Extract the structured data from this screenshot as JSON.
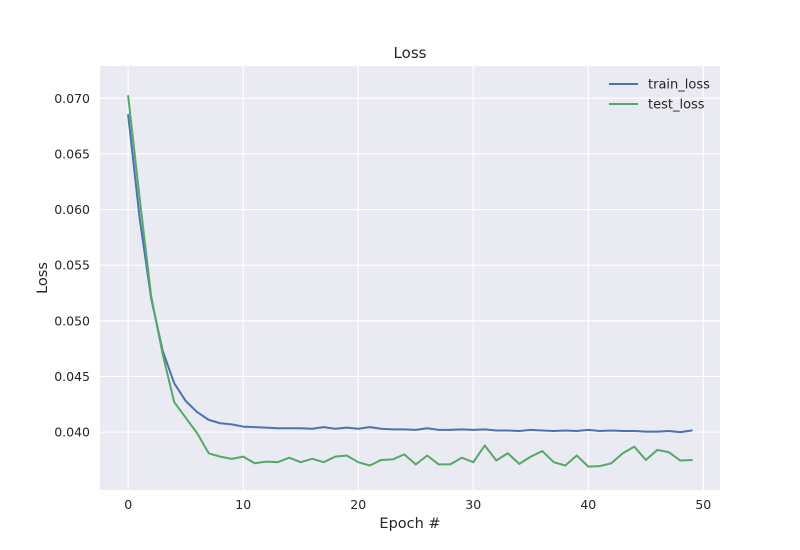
{
  "chart_data": {
    "type": "line",
    "title": "Loss",
    "xlabel": "Epoch #",
    "ylabel": "Loss",
    "xlim": [
      -2.45,
      51.45
    ],
    "ylim": [
      0.0348,
      0.0729
    ],
    "xticks": [
      0,
      10,
      20,
      30,
      40,
      50
    ],
    "yticks": [
      0.04,
      0.045,
      0.05,
      0.055,
      0.06,
      0.065,
      0.07
    ],
    "xtick_labels": [
      "0",
      "10",
      "20",
      "30",
      "40",
      "50"
    ],
    "ytick_labels": [
      "0.040",
      "0.045",
      "0.050",
      "0.055",
      "0.060",
      "0.065",
      "0.070"
    ],
    "grid": true,
    "legend_position": "top-right",
    "x": [
      0,
      1,
      2,
      3,
      4,
      5,
      6,
      7,
      8,
      9,
      10,
      11,
      12,
      13,
      14,
      15,
      16,
      17,
      18,
      19,
      20,
      21,
      22,
      23,
      24,
      25,
      26,
      27,
      28,
      29,
      30,
      31,
      32,
      33,
      34,
      35,
      36,
      37,
      38,
      39,
      40,
      41,
      42,
      43,
      44,
      45,
      46,
      47,
      48,
      49
    ],
    "series": [
      {
        "name": "train_loss",
        "color": "#4c72b0",
        "values": [
          0.0685,
          0.0592,
          0.052,
          0.0473,
          0.0444,
          0.0428,
          0.0418,
          0.0411,
          0.0408,
          0.0407,
          0.0405,
          0.04045,
          0.0404,
          0.04035,
          0.04035,
          0.04035,
          0.0403,
          0.04045,
          0.0403,
          0.0404,
          0.0403,
          0.04045,
          0.0403,
          0.04025,
          0.04025,
          0.0402,
          0.04035,
          0.0402,
          0.0402,
          0.04025,
          0.0402,
          0.04025,
          0.04015,
          0.04015,
          0.0401,
          0.0402,
          0.04015,
          0.0401,
          0.04015,
          0.0401,
          0.0402,
          0.0401,
          0.04015,
          0.0401,
          0.0401,
          0.04005,
          0.04005,
          0.0401,
          0.04,
          0.04015
        ]
      },
      {
        "name": "test_loss",
        "color": "#55a868",
        "values": [
          0.0702,
          0.061,
          0.0522,
          0.047,
          0.0427,
          0.0413,
          0.0399,
          0.0381,
          0.0378,
          0.0376,
          0.0378,
          0.0372,
          0.03735,
          0.0373,
          0.0377,
          0.0373,
          0.0376,
          0.0373,
          0.0378,
          0.0379,
          0.0373,
          0.037,
          0.0375,
          0.03755,
          0.038,
          0.0371,
          0.0379,
          0.0371,
          0.0371,
          0.0377,
          0.0373,
          0.0388,
          0.03745,
          0.0381,
          0.03715,
          0.0378,
          0.0383,
          0.0373,
          0.037,
          0.0379,
          0.0369,
          0.03695,
          0.0372,
          0.0381,
          0.0387,
          0.0375,
          0.0384,
          0.0382,
          0.03745,
          0.0375
        ]
      }
    ]
  }
}
